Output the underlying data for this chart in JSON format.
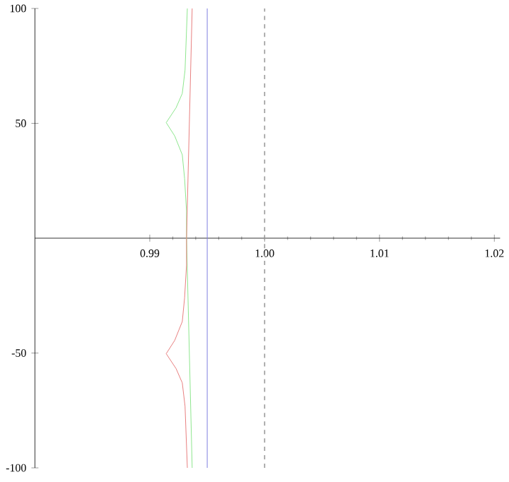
{
  "chart_data": {
    "type": "line",
    "xlim": [
      0.98,
      1.0205
    ],
    "ylim": [
      -100,
      100
    ],
    "xticks": [
      0.99,
      {
        "value": 1.0,
        "label": "1.00"
      },
      1.01,
      1.02
    ],
    "yticks": [
      -100,
      -50,
      50,
      100
    ],
    "series": [
      {
        "color": "#8ee68e",
        "x": [
          0.99327,
          0.99307,
          0.99283,
          0.99229,
          0.99143,
          0.99217,
          0.99283,
          0.99303,
          0.9932,
          0.9932,
          0.99369
        ],
        "values": [
          100,
          73.2,
          63.0,
          56.8,
          50.3,
          44.5,
          36.3,
          26.0,
          11.7,
          0,
          -100
        ]
      },
      {
        "color": "#e88080",
        "x": [
          0.99369,
          0.9932,
          0.9932,
          0.99303,
          0.99283,
          0.99217,
          0.99143,
          0.99229,
          0.99283,
          0.99307,
          0.99327
        ],
        "values": [
          100,
          0,
          -11.7,
          -26.0,
          -36.3,
          -44.5,
          -50.3,
          -56.8,
          -63.0,
          -73.2,
          -100
        ]
      },
      {
        "color": "#8080e0",
        "x": [
          0.995,
          0.995
        ],
        "values": [
          100,
          -100
        ]
      }
    ],
    "ref_lines": [
      {
        "axis": "x",
        "value": 1.0,
        "color": "#999999",
        "line_style": "dashed"
      }
    ]
  }
}
